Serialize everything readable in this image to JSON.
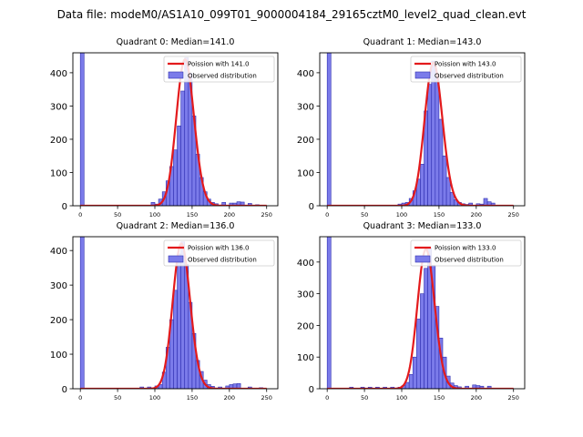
{
  "figure": {
    "suptitle": "Data file: modeM0/AS1A10_099T01_9000004184_29165cztM0_level2_quad_clean.evt"
  },
  "colors": {
    "hist_fill": "#7b7bea",
    "hist_edge": "#2e2eb0",
    "poisson_line": "#e31a1c",
    "axis": "#000000"
  },
  "chart_data": [
    {
      "type": "bar",
      "title": "Quadrant 0: Median=141.0",
      "legend_position": "top-right",
      "legend": [
        "Poission with 141.0",
        "Observed distribution"
      ],
      "xlim": [
        -10,
        265
      ],
      "ylim": [
        0,
        460
      ],
      "xticks": [
        0,
        50,
        100,
        150,
        200,
        250
      ],
      "yticks": [
        0,
        100,
        200,
        300,
        400
      ],
      "bin_width": 5,
      "poisson_mean": 141.0,
      "poisson_peak": 440,
      "bins": [
        [
          0,
          460
        ],
        [
          95,
          10
        ],
        [
          100,
          5
        ],
        [
          105,
          20
        ],
        [
          110,
          42
        ],
        [
          115,
          75
        ],
        [
          120,
          118
        ],
        [
          125,
          168
        ],
        [
          130,
          240
        ],
        [
          135,
          345
        ],
        [
          140,
          445
        ],
        [
          145,
          398
        ],
        [
          150,
          270
        ],
        [
          155,
          155
        ],
        [
          160,
          85
        ],
        [
          165,
          42
        ],
        [
          170,
          20
        ],
        [
          175,
          10
        ],
        [
          180,
          6
        ],
        [
          190,
          10
        ],
        [
          200,
          8
        ],
        [
          205,
          8
        ],
        [
          210,
          12
        ],
        [
          215,
          11
        ],
        [
          225,
          7
        ],
        [
          235,
          3
        ]
      ]
    },
    {
      "type": "bar",
      "title": "Quadrant 1: Median=143.0",
      "legend_position": "top-right",
      "legend": [
        "Poission with 143.0",
        "Observed distribution"
      ],
      "xlim": [
        -10,
        265
      ],
      "ylim": [
        0,
        460
      ],
      "xticks": [
        0,
        50,
        100,
        150,
        200,
        250
      ],
      "yticks": [
        0,
        100,
        200,
        300,
        400
      ],
      "bin_width": 5,
      "poisson_mean": 143.0,
      "poisson_peak": 430,
      "bins": [
        [
          0,
          460
        ],
        [
          95,
          5
        ],
        [
          100,
          8
        ],
        [
          105,
          10
        ],
        [
          110,
          22
        ],
        [
          115,
          45
        ],
        [
          120,
          80
        ],
        [
          125,
          125
        ],
        [
          130,
          285
        ],
        [
          135,
          365
        ],
        [
          140,
          435
        ],
        [
          145,
          385
        ],
        [
          150,
          260
        ],
        [
          155,
          150
        ],
        [
          160,
          85
        ],
        [
          165,
          40
        ],
        [
          170,
          18
        ],
        [
          175,
          10
        ],
        [
          180,
          6
        ],
        [
          185,
          4
        ],
        [
          190,
          8
        ],
        [
          200,
          6
        ],
        [
          205,
          5
        ],
        [
          210,
          22
        ],
        [
          215,
          12
        ],
        [
          220,
          8
        ]
      ]
    },
    {
      "type": "bar",
      "title": "Quadrant 2: Median=136.0",
      "legend_position": "top-right",
      "legend": [
        "Poission with 136.0",
        "Observed distribution"
      ],
      "xlim": [
        -10,
        265
      ],
      "ylim": [
        0,
        440
      ],
      "xticks": [
        0,
        50,
        100,
        150,
        200,
        250
      ],
      "yticks": [
        0,
        100,
        200,
        300,
        400
      ],
      "bin_width": 5,
      "poisson_mean": 136.0,
      "poisson_peak": 420,
      "bins": [
        [
          0,
          440
        ],
        [
          80,
          5
        ],
        [
          90,
          5
        ],
        [
          100,
          8
        ],
        [
          105,
          12
        ],
        [
          110,
          48
        ],
        [
          115,
          120
        ],
        [
          120,
          200
        ],
        [
          125,
          285
        ],
        [
          130,
          390
        ],
        [
          135,
          425
        ],
        [
          140,
          360
        ],
        [
          145,
          250
        ],
        [
          150,
          160
        ],
        [
          155,
          82
        ],
        [
          160,
          50
        ],
        [
          165,
          25
        ],
        [
          170,
          12
        ],
        [
          175,
          7
        ],
        [
          185,
          5
        ],
        [
          195,
          8
        ],
        [
          200,
          12
        ],
        [
          205,
          14
        ],
        [
          210,
          15
        ],
        [
          225,
          5
        ],
        [
          240,
          3
        ]
      ]
    },
    {
      "type": "bar",
      "title": "Quadrant 3: Median=133.0",
      "legend_position": "top-right",
      "legend": [
        "Poission with 133.0",
        "Observed distribution"
      ],
      "xlim": [
        -10,
        265
      ],
      "ylim": [
        0,
        480
      ],
      "xticks": [
        0,
        50,
        100,
        150,
        200,
        250
      ],
      "yticks": [
        0,
        100,
        200,
        300,
        400
      ],
      "bin_width": 5,
      "poisson_mean": 133.0,
      "poisson_peak": 440,
      "bins": [
        [
          0,
          480
        ],
        [
          30,
          5
        ],
        [
          45,
          5
        ],
        [
          55,
          5
        ],
        [
          65,
          5
        ],
        [
          75,
          5
        ],
        [
          85,
          5
        ],
        [
          95,
          5
        ],
        [
          100,
          10
        ],
        [
          105,
          20
        ],
        [
          110,
          45
        ],
        [
          115,
          100
        ],
        [
          120,
          220
        ],
        [
          125,
          300
        ],
        [
          130,
          380
        ],
        [
          135,
          445
        ],
        [
          140,
          390
        ],
        [
          145,
          260
        ],
        [
          150,
          160
        ],
        [
          155,
          100
        ],
        [
          160,
          40
        ],
        [
          165,
          18
        ],
        [
          170,
          10
        ],
        [
          175,
          6
        ],
        [
          185,
          8
        ],
        [
          195,
          12
        ],
        [
          200,
          10
        ],
        [
          205,
          8
        ],
        [
          215,
          8
        ]
      ]
    }
  ]
}
